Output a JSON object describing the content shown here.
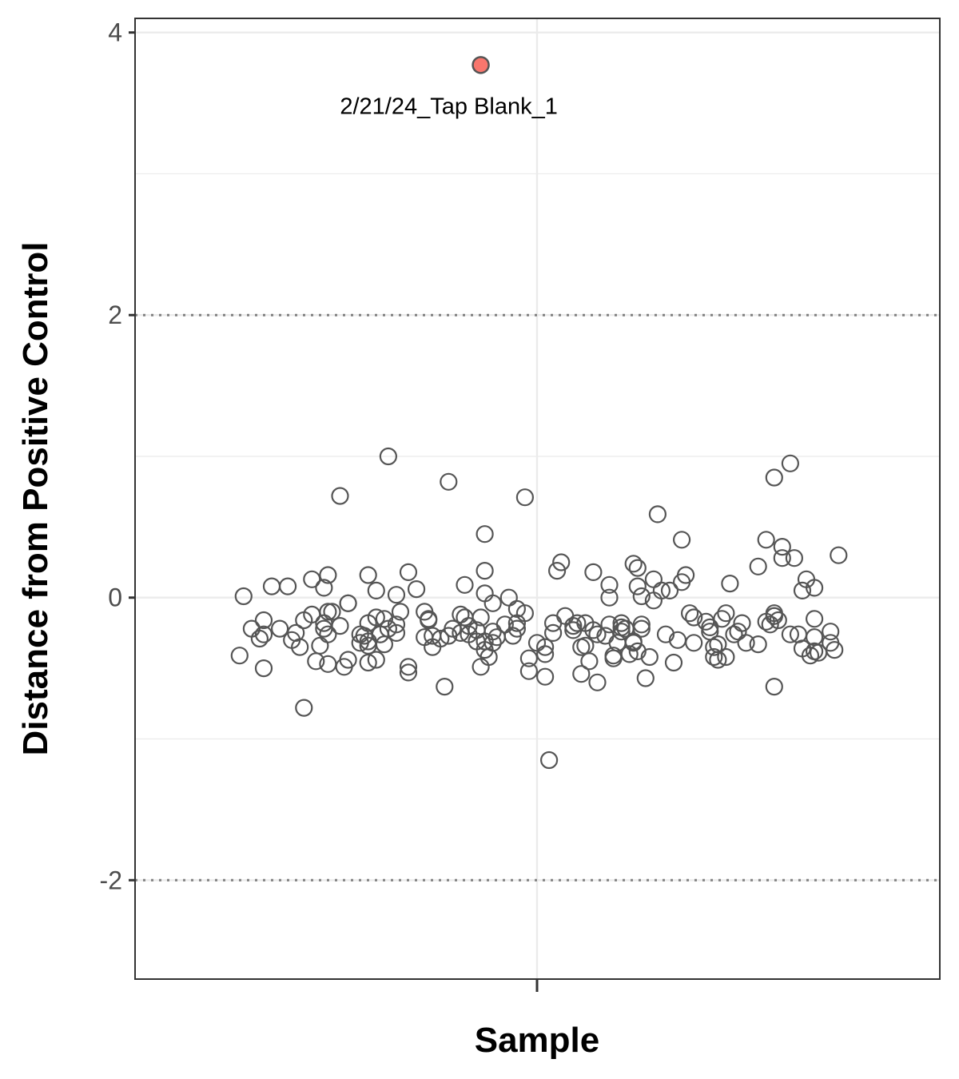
{
  "chart_data": {
    "type": "scatter",
    "title": "",
    "xlabel": "Sample",
    "ylabel": "Distance from Positive Control",
    "ylim": [
      -2.7,
      4.1
    ],
    "y_ticks": [
      "-2",
      "0",
      "2",
      "4"
    ],
    "y_tick_values": [
      -2,
      0,
      2,
      4
    ],
    "y_minor_breaks": [
      -1,
      1,
      3
    ],
    "threshold_lines": [
      2,
      -2
    ],
    "grid": true,
    "colors": {
      "point_stroke": "#555555",
      "highlight_fill": "#F8766D",
      "threshold": "#808080",
      "grid": "#ebebeb",
      "panel_border": "#333333"
    },
    "highlight": {
      "label": "2/21/24_Tap Blank_1",
      "y": 3.77
    },
    "y": [
      -0.41,
      0.01,
      -0.22,
      -0.29,
      -0.26,
      -0.5,
      -0.16,
      0.08,
      -0.22,
      0.08,
      -0.3,
      -0.25,
      -0.35,
      -0.78,
      -0.16,
      -0.12,
      0.13,
      -0.45,
      -0.34,
      -0.22,
      -0.18,
      0.07,
      0.16,
      -0.1,
      -0.47,
      -0.26,
      -0.1,
      0.72,
      -0.2,
      -0.49,
      -0.04,
      -0.04,
      -0.44,
      -0.26,
      -0.32,
      -0.27,
      -0.46,
      -0.18,
      -0.34,
      -0.31,
      0.16,
      0.05,
      -0.14,
      -0.44,
      -0.26,
      -0.26,
      -0.33,
      -0.15,
      -0.22,
      1.0,
      0.02,
      -0.25,
      -0.19,
      -0.1,
      -0.49,
      -0.53,
      0.18,
      0.06,
      -0.28,
      -0.1,
      -0.16,
      -0.15,
      -0.27,
      -0.35,
      -0.29,
      -0.63,
      0.82,
      -0.27,
      -0.22,
      -0.25,
      -0.12,
      -0.14,
      0.09,
      -0.2,
      -0.26,
      -0.31,
      -0.23,
      -0.49,
      -0.14,
      0.45,
      -0.31,
      0.19,
      0.03,
      -0.37,
      -0.42,
      -0.32,
      -0.24,
      -0.04,
      -0.28,
      0.0,
      -0.19,
      -0.27,
      -0.22,
      -0.18,
      -0.08,
      0.71,
      -0.52,
      -0.43,
      -0.11,
      -0.32,
      -0.35,
      -0.4,
      -0.56,
      -1.15,
      -0.25,
      -0.18,
      0.19,
      0.25,
      -0.13,
      -0.2,
      -0.23,
      -0.18,
      -0.35,
      -0.54,
      -0.34,
      -0.18,
      -0.45,
      0.18,
      -0.23,
      -0.26,
      -0.6,
      -0.27,
      -0.19,
      0.09,
      0.0,
      -0.41,
      -0.43,
      -0.32,
      -0.21,
      -0.24,
      -0.18,
      -0.22,
      -0.4,
      -0.31,
      0.24,
      -0.32,
      -0.38,
      0.21,
      0.08,
      -0.19,
      -0.22,
      0.01,
      -0.57,
      -0.42,
      0.13,
      -0.02,
      0.59,
      0.05,
      -0.26,
      0.05,
      0.11,
      -0.46,
      -0.3,
      0.41,
      0.16,
      -0.11,
      -0.14,
      -0.32,
      -0.17,
      -0.21,
      -0.24,
      -0.42,
      -0.35,
      -0.44,
      -0.33,
      -0.15,
      -0.11,
      -0.42,
      0.1,
      -0.26,
      -0.24,
      -0.18,
      -0.32,
      -0.33,
      0.22,
      -0.17,
      0.41,
      -0.19,
      -0.13,
      -0.11,
      -0.63,
      -0.13,
      -0.16,
      0.36,
      0.28,
      -0.26,
      0.95,
      0.85,
      0.28,
      -0.26,
      0.05,
      -0.36,
      0.13,
      -0.15,
      -0.41,
      -0.38,
      0.07,
      -0.28,
      -0.39,
      -0.24,
      -0.32,
      -0.37,
      0.3
    ],
    "jitter_x": [
      -0.74,
      -0.73,
      -0.71,
      -0.69,
      -0.68,
      -0.68,
      -0.68,
      -0.66,
      -0.64,
      -0.62,
      -0.61,
      -0.6,
      -0.59,
      -0.58,
      -0.58,
      -0.56,
      -0.56,
      -0.55,
      -0.54,
      -0.53,
      -0.53,
      -0.53,
      -0.52,
      -0.52,
      -0.52,
      -0.52,
      -0.51,
      -0.49,
      -0.49,
      -0.48,
      -0.47,
      -0.47,
      -0.47,
      -0.44,
      -0.44,
      -0.43,
      -0.42,
      -0.42,
      -0.42,
      -0.42,
      -0.42,
      -0.4,
      -0.4,
      -0.4,
      -0.39,
      -0.39,
      -0.38,
      -0.38,
      -0.37,
      -0.37,
      -0.35,
      -0.35,
      -0.35,
      -0.34,
      -0.32,
      -0.32,
      -0.32,
      -0.3,
      -0.28,
      -0.28,
      -0.27,
      -0.27,
      -0.26,
      -0.26,
      -0.24,
      -0.23,
      -0.22,
      -0.22,
      -0.21,
      -0.19,
      -0.19,
      -0.18,
      -0.18,
      -0.17,
      -0.17,
      -0.15,
      -0.15,
      -0.14,
      -0.14,
      -0.13,
      -0.13,
      -0.13,
      -0.13,
      -0.13,
      -0.12,
      -0.11,
      -0.11,
      -0.11,
      -0.1,
      -0.07,
      -0.08,
      -0.06,
      -0.05,
      -0.05,
      -0.05,
      -0.03,
      -0.02,
      -0.02,
      -0.03,
      0.0,
      0.02,
      0.02,
      0.02,
      0.03,
      0.04,
      0.04,
      0.05,
      0.06,
      0.07,
      0.09,
      0.09,
      0.1,
      0.11,
      0.11,
      0.12,
      0.12,
      0.13,
      0.14,
      0.14,
      0.15,
      0.15,
      0.17,
      0.18,
      0.18,
      0.18,
      0.19,
      0.19,
      0.2,
      0.21,
      0.21,
      0.21,
      0.22,
      0.23,
      0.24,
      0.24,
      0.24,
      0.25,
      0.25,
      0.25,
      0.26,
      0.26,
      0.26,
      0.27,
      0.28,
      0.29,
      0.29,
      0.3,
      0.31,
      0.32,
      0.33,
      0.36,
      0.34,
      0.35,
      0.36,
      0.37,
      0.38,
      0.39,
      0.39,
      0.42,
      0.43,
      0.43,
      0.44,
      0.44,
      0.45,
      0.45,
      0.46,
      0.47,
      0.47,
      0.48,
      0.49,
      0.5,
      0.51,
      0.52,
      0.55,
      0.55,
      0.57,
      0.57,
      0.58,
      0.59,
      0.59,
      0.59,
      0.59,
      0.6,
      0.61,
      0.61,
      0.63,
      0.63,
      0.59,
      0.64,
      0.65,
      0.66,
      0.66,
      0.67,
      0.69,
      0.68,
      0.69,
      0.69,
      0.69,
      0.7,
      0.73,
      0.73,
      0.74,
      0.75
    ]
  }
}
